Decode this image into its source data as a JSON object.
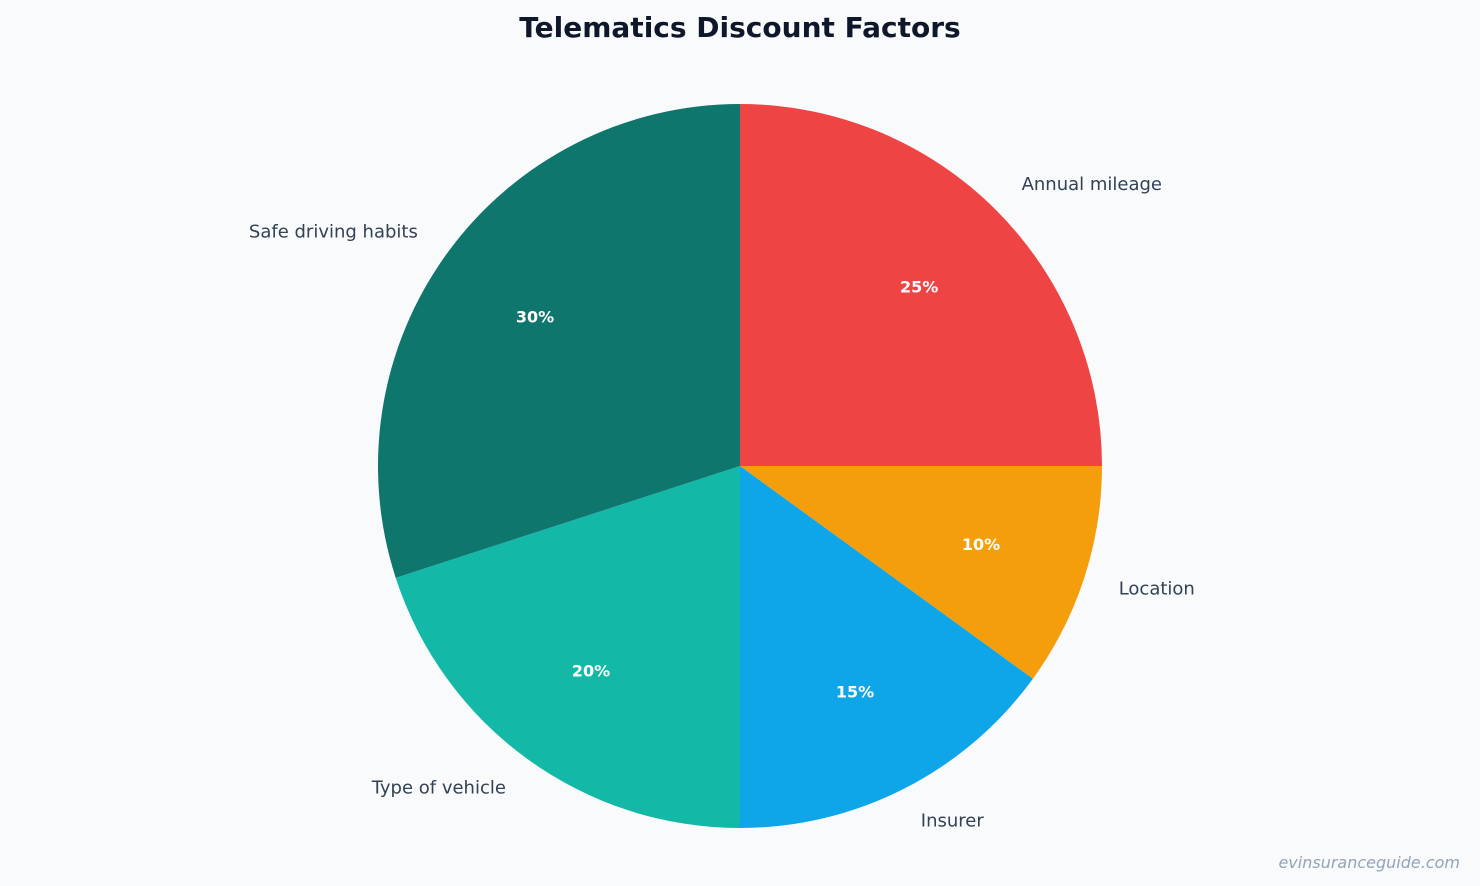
{
  "chart_data": {
    "type": "pie",
    "title": "Telematics Discount Factors",
    "categories": [
      "Annual mileage",
      "Location",
      "Insurer",
      "Type of vehicle",
      "Safe driving habits"
    ],
    "values": [
      25,
      10,
      15,
      20,
      30
    ],
    "percent_labels": [
      "25%",
      "10%",
      "15%",
      "20%",
      "30%"
    ],
    "colors": [
      "#ef4444",
      "#f59e0b",
      "#0ea5e9",
      "#14b8a6",
      "#0f766e"
    ],
    "start_angle": "top (12 o'clock)",
    "direction": "clockwise",
    "legend": "none (labels outside slices)"
  },
  "watermark": "evinsuranceguide.com"
}
